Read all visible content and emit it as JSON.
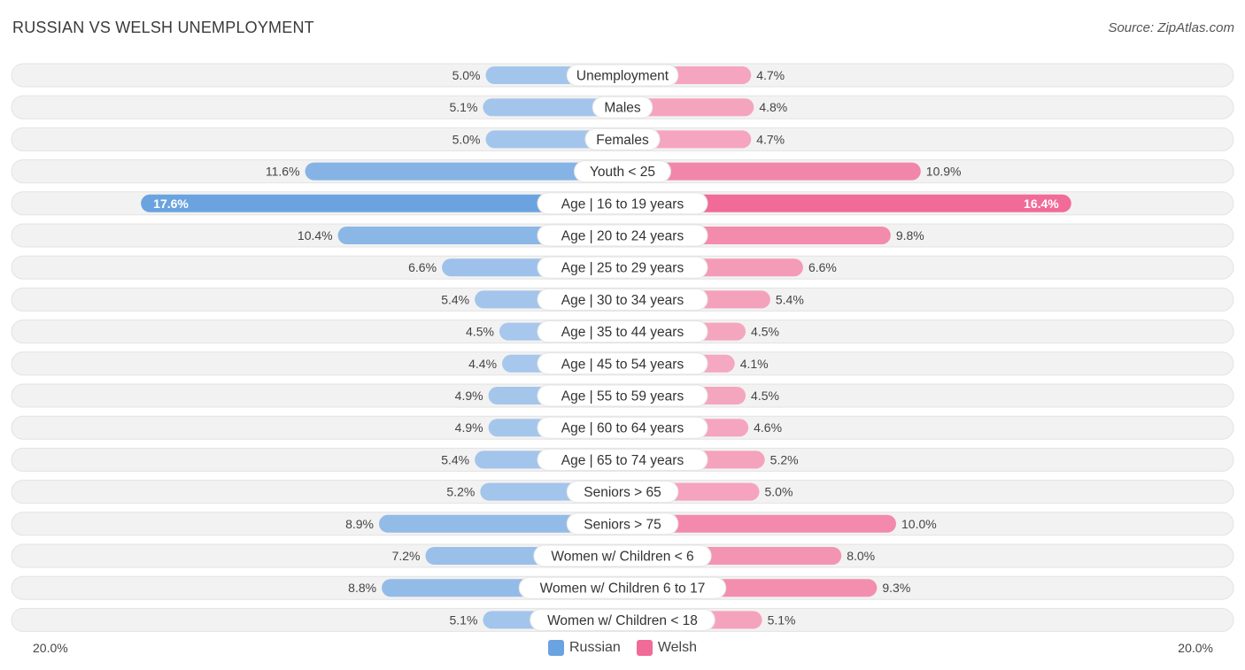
{
  "title": "RUSSIAN VS WELSH UNEMPLOYMENT",
  "source": "Source: ZipAtlas.com",
  "colors": {
    "russian": "#6aa3df",
    "russian_light": "#a9c8ec",
    "welsh": "#f06b97",
    "welsh_light": "#f5a8c1"
  },
  "legend": {
    "russian": "Russian",
    "welsh": "Welsh"
  },
  "axis": {
    "left_label": "20.0%",
    "right_label": "20.0%"
  },
  "chart_data": {
    "type": "bar",
    "orientation": "diverging-horizontal",
    "title": "RUSSIAN VS WELSH UNEMPLOYMENT",
    "categories": [
      "Unemployment",
      "Males",
      "Females",
      "Youth < 25",
      "Age | 16 to 19 years",
      "Age | 20 to 24 years",
      "Age | 25 to 29 years",
      "Age | 30 to 34 years",
      "Age | 35 to 44 years",
      "Age | 45 to 54 years",
      "Age | 55 to 59 years",
      "Age | 60 to 64 years",
      "Age | 65 to 74 years",
      "Seniors > 65",
      "Seniors > 75",
      "Women w/ Children < 6",
      "Women w/ Children 6 to 17",
      "Women w/ Children < 18"
    ],
    "series": [
      {
        "name": "Russian",
        "values": [
          5.0,
          5.1,
          5.0,
          11.6,
          17.6,
          10.4,
          6.6,
          5.4,
          4.5,
          4.4,
          4.9,
          4.9,
          5.4,
          5.2,
          8.9,
          7.2,
          8.8,
          5.1
        ],
        "labels": [
          "5.0%",
          "5.1%",
          "5.0%",
          "11.6%",
          "17.6%",
          "10.4%",
          "6.6%",
          "5.4%",
          "4.5%",
          "4.4%",
          "4.9%",
          "4.9%",
          "5.4%",
          "5.2%",
          "8.9%",
          "7.2%",
          "8.8%",
          "5.1%"
        ]
      },
      {
        "name": "Welsh",
        "values": [
          4.7,
          4.8,
          4.7,
          10.9,
          16.4,
          9.8,
          6.6,
          5.4,
          4.5,
          4.1,
          4.5,
          4.6,
          5.2,
          5.0,
          10.0,
          8.0,
          9.3,
          5.1
        ],
        "labels": [
          "4.7%",
          "4.8%",
          "4.7%",
          "10.9%",
          "16.4%",
          "9.8%",
          "6.6%",
          "5.4%",
          "4.5%",
          "4.1%",
          "4.5%",
          "4.6%",
          "5.2%",
          "5.0%",
          "10.0%",
          "8.0%",
          "9.3%",
          "5.1%"
        ]
      }
    ],
    "xlim": [
      -20,
      20
    ],
    "xlabel_left": "20.0%",
    "xlabel_right": "20.0%",
    "legend_position": "bottom-center"
  }
}
